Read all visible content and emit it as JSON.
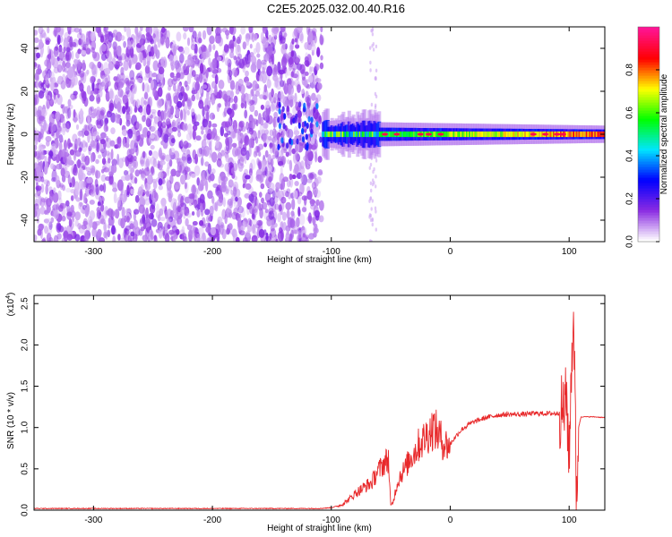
{
  "title": "C2E5.2025.032.00.40.R16",
  "chart_data": [
    {
      "type": "heatmap",
      "xlabel": "Height of straight line (km)",
      "ylabel": "Frequency (Hz)",
      "xlim": [
        -350,
        130
      ],
      "ylim": [
        -50,
        50
      ],
      "xticks": [
        -300,
        -200,
        -100,
        0,
        100
      ],
      "yticks": [
        -40,
        -20,
        0,
        20,
        40
      ],
      "colorbar": {
        "label": "Normalized spectral amplitude",
        "range": [
          0,
          1
        ],
        "ticks": [
          "0.0",
          "0.2",
          "0.4",
          "0.6",
          "0.8"
        ],
        "colors": [
          "#ffffff",
          "#8a2be2",
          "#0000ff",
          "#00e5ff",
          "#00ff00",
          "#ffff00",
          "#ff0000",
          "#ff1493"
        ]
      },
      "features": {
        "noise_region_km": [
          -350,
          -108
        ],
        "ridge_frequency_hz": 0,
        "ridge_start_km": -108,
        "ridge_peak_amplitude": 0.95
      }
    },
    {
      "type": "line",
      "xlabel": "Height of straight line (km)",
      "ylabel": "SNR (10 * v/v)",
      "yscale_label": "(x10",
      "yscale_exp": "4",
      "xlim": [
        -350,
        130
      ],
      "ylim": [
        0,
        2.6
      ],
      "xticks": [
        -300,
        -200,
        -100,
        0,
        100
      ],
      "yticks": [
        "0.0",
        "0.5",
        "1.0",
        "1.5",
        "2.0",
        "2.5"
      ],
      "series": [
        {
          "color": "#e8282a",
          "x": [
            -350,
            -300,
            -200,
            -110,
            -100,
            -92,
            -86,
            -80,
            -75,
            -70,
            -66,
            -62,
            -58,
            -55,
            -52,
            -50,
            -48,
            -45,
            -42,
            -38,
            -34,
            -30,
            -26,
            -22,
            -18,
            -14,
            -10,
            -6,
            -2,
            0,
            5,
            10,
            15,
            20,
            30,
            40,
            50,
            60,
            70,
            80,
            90,
            95,
            98,
            100,
            102,
            104,
            106,
            108,
            110,
            115,
            120,
            130
          ],
          "y": [
            0.02,
            0.02,
            0.02,
            0.02,
            0.03,
            0.06,
            0.12,
            0.2,
            0.25,
            0.3,
            0.33,
            0.45,
            0.52,
            0.58,
            0.62,
            0.05,
            0.1,
            0.3,
            0.42,
            0.5,
            0.62,
            0.7,
            0.8,
            0.86,
            0.94,
            1.0,
            0.92,
            0.82,
            0.78,
            0.8,
            0.9,
            0.98,
            1.03,
            1.07,
            1.12,
            1.15,
            1.16,
            1.16,
            1.17,
            1.17,
            1.17,
            1.2,
            1.35,
            0.6,
            1.8,
            2.4,
            0.1,
            1.0,
            1.13,
            1.13,
            1.13,
            1.12
          ]
        }
      ]
    }
  ]
}
